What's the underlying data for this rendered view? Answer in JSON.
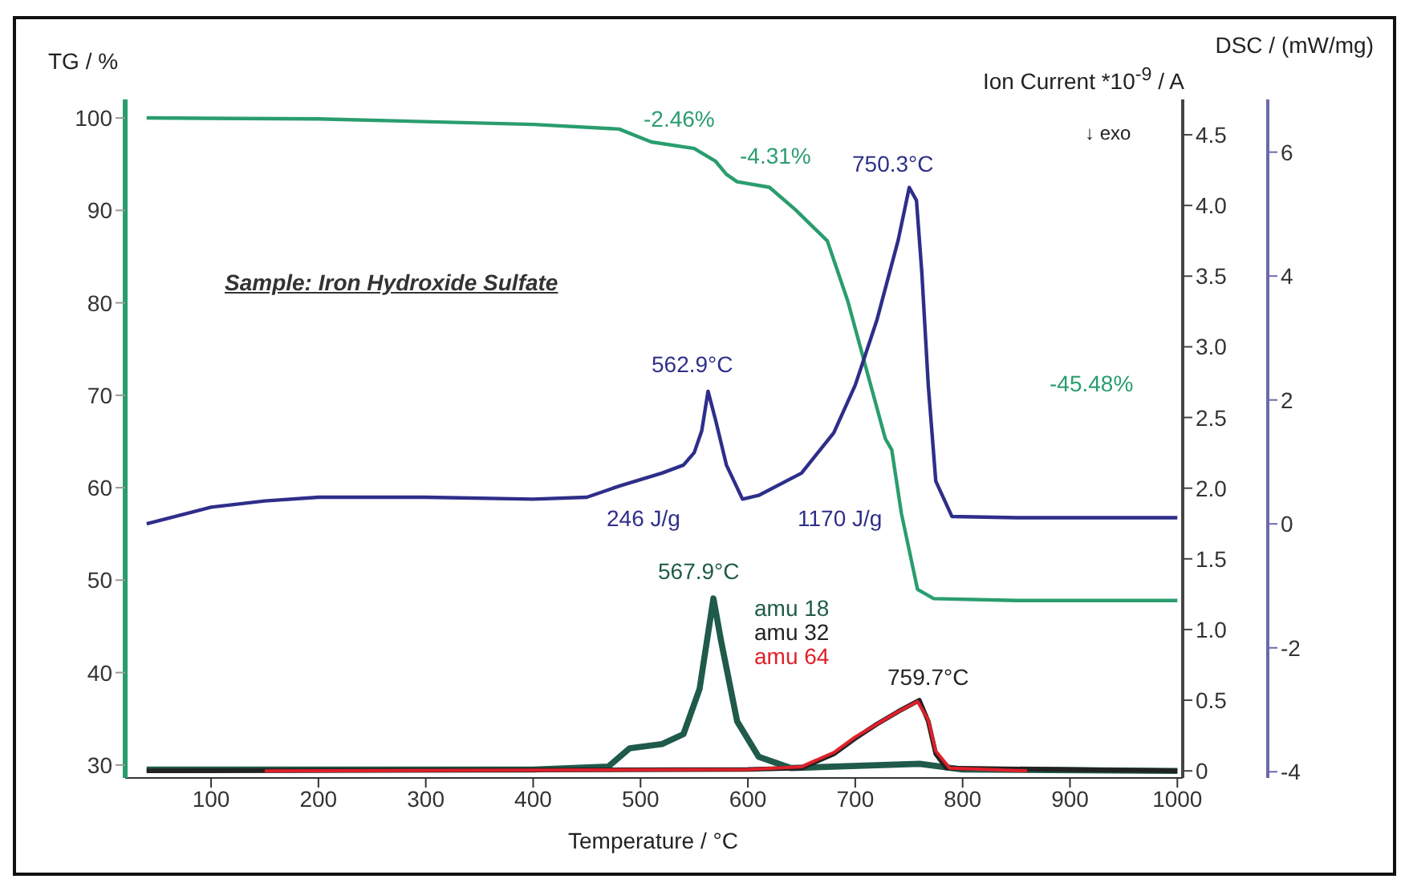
{
  "chart_data": {
    "type": "line",
    "xlabel": "Temperature / °C",
    "ylabel": "TG / %",
    "y2label": "Ion Current *10$^{-9}$ / A",
    "y3label": "DSC / (mW/mg)",
    "xlim": [
      20,
      1005
    ],
    "xticks": [
      100,
      200,
      300,
      400,
      500,
      600,
      700,
      800,
      900,
      1000
    ],
    "ylim": [
      28.6,
      102
    ],
    "yticks": [
      30,
      40,
      50,
      60,
      70,
      80,
      90,
      100
    ],
    "y2lim": [
      -0.05,
      4.75
    ],
    "y2ticks": [
      0,
      0.5,
      {
        "value": 1,
        "label": "1.0"
      },
      1.5,
      {
        "value": 2,
        "label": "2.0"
      },
      2.5,
      {
        "value": 3,
        "label": "3.0"
      },
      3.5,
      {
        "value": 4,
        "label": "4.0"
      },
      4.5
    ],
    "y3lim": [
      -4.1,
      6.85
    ],
    "y3ticks": [
      -4,
      -2,
      0,
      2,
      4,
      6
    ],
    "grid": false,
    "legend": "center",
    "marker": "none",
    "line_style": "solid",
    "annotations": [
      "Sample: Iron Hydroxide Sulfate",
      "-2.46%",
      "-4.31%",
      "-45.48%",
      "750.3°C",
      "562.9°C",
      "246 J/g",
      "1170 J/g",
      "567.9°C",
      "759.7°C",
      "↓ exo"
    ],
    "series": [
      {
        "color": "#2a9d6e",
        "x": [
          40,
          200,
          400,
          480,
          510,
          550,
          570,
          580,
          590,
          620,
          644,
          674,
          693,
          728,
          734,
          743,
          758,
          773,
          850,
          1000
        ],
        "values": [
          100,
          99.9,
          99.3,
          98.8,
          97.4,
          96.7,
          95.3,
          93.9,
          93.1,
          92.5,
          90.1,
          86.7,
          80.2,
          65.3,
          64.1,
          57.2,
          49.0,
          48.0,
          47.8,
          47.8
        ]
      },
      {
        "color": "#2e2e8a",
        "axis": "y3",
        "x": [
          40,
          100,
          150,
          200,
          300,
          400,
          450,
          480,
          520,
          540,
          550,
          557,
          562.9,
          570,
          580,
          595,
          610,
          650,
          680,
          700,
          720,
          740,
          750.3,
          757,
          762,
          768,
          775,
          790,
          850,
          1000
        ],
        "values": [
          0.0,
          0.27,
          0.37,
          0.43,
          0.43,
          0.4,
          0.43,
          0.61,
          0.82,
          0.95,
          1.15,
          1.5,
          2.14,
          1.67,
          0.95,
          0.4,
          0.46,
          0.82,
          1.47,
          2.24,
          3.28,
          4.58,
          5.43,
          5.22,
          4.06,
          2.24,
          0.69,
          0.12,
          0.1,
          0.1
        ]
      },
      {
        "name": "amu 18",
        "color": "#1f5a4a",
        "axis": "y2",
        "x": [
          40,
          400,
          470,
          490,
          520,
          540,
          555,
          567.9,
          575,
          590,
          610,
          640,
          760,
          800,
          1000
        ],
        "values": [
          0.01,
          0.01,
          0.03,
          0.16,
          0.19,
          0.26,
          0.58,
          1.22,
          0.92,
          0.35,
          0.1,
          0.02,
          0.05,
          0.01,
          0.0
        ]
      },
      {
        "name": "amu 32",
        "color": "#222222",
        "axis": "y2",
        "x": [
          40,
          600,
          650,
          680,
          700,
          720,
          740,
          759.7,
          768,
          775,
          785,
          1000
        ],
        "values": [
          0.0,
          0.01,
          0.02,
          0.12,
          0.23,
          0.33,
          0.42,
          0.5,
          0.35,
          0.12,
          0.02,
          0.0
        ]
      },
      {
        "name": "amu 64",
        "color": "#e0202a",
        "axis": "y2",
        "x": [
          150,
          600,
          650,
          680,
          700,
          720,
          740,
          758,
          768,
          775,
          788,
          860
        ],
        "values": [
          0.0,
          0.01,
          0.03,
          0.13,
          0.24,
          0.33,
          0.42,
          0.49,
          0.36,
          0.14,
          0.02,
          0.0
        ]
      }
    ]
  }
}
